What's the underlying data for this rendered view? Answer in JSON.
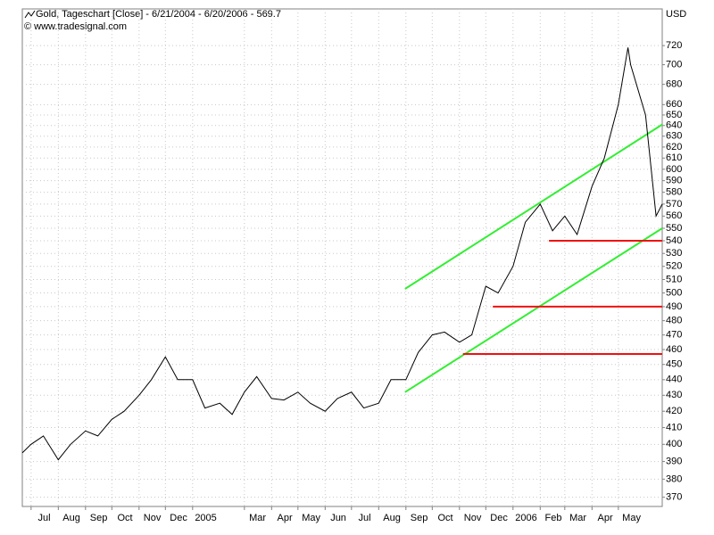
{
  "chart_data": {
    "type": "line",
    "title": "Gold, Tageschart [Close] - 6/21/2004 - 6/20/2006 - 569.7",
    "subtitle": "© www.tradesignal.com",
    "y_axis_label": "USD",
    "log_scale": true,
    "grid": true,
    "xlim": [
      "2004-06-21",
      "2006-06-20"
    ],
    "xticks": [
      {
        "value": "2004-07",
        "label": "Jul"
      },
      {
        "value": "2004-08",
        "label": "Aug"
      },
      {
        "value": "2004-09",
        "label": "Sep"
      },
      {
        "value": "2004-10",
        "label": "Oct"
      },
      {
        "value": "2004-11",
        "label": "Nov"
      },
      {
        "value": "2004-12",
        "label": "Dec"
      },
      {
        "value": "2005-01",
        "label": "2005"
      },
      {
        "value": "2005-03",
        "label": "Mar"
      },
      {
        "value": "2005-04",
        "label": "Apr"
      },
      {
        "value": "2005-05",
        "label": "May"
      },
      {
        "value": "2005-06",
        "label": "Jun"
      },
      {
        "value": "2005-07",
        "label": "Jul"
      },
      {
        "value": "2005-08",
        "label": "Aug"
      },
      {
        "value": "2005-09",
        "label": "Sep"
      },
      {
        "value": "2005-10",
        "label": "Oct"
      },
      {
        "value": "2005-11",
        "label": "Nov"
      },
      {
        "value": "2005-12",
        "label": "Dec"
      },
      {
        "value": "2006-01",
        "label": "2006"
      },
      {
        "value": "2006-02",
        "label": "Feb"
      },
      {
        "value": "2006-03",
        "label": "Mar"
      },
      {
        "value": "2006-04",
        "label": "Apr"
      },
      {
        "value": "2006-05",
        "label": "May"
      }
    ],
    "ylim": [
      365,
      760
    ],
    "yticks": [
      370,
      380,
      390,
      400,
      410,
      420,
      430,
      440,
      450,
      460,
      470,
      480,
      490,
      500,
      510,
      520,
      530,
      540,
      550,
      560,
      570,
      580,
      590,
      600,
      610,
      620,
      630,
      640,
      650,
      660,
      680,
      700,
      720
    ],
    "series": [
      {
        "name": "Gold",
        "color": "#000000",
        "x": [
          "2004-06-21",
          "2004-07-01",
          "2004-07-15",
          "2004-08-01",
          "2004-08-15",
          "2004-09-01",
          "2004-09-15",
          "2004-10-01",
          "2004-10-15",
          "2004-11-01",
          "2004-11-15",
          "2004-12-01",
          "2004-12-15",
          "2005-01-01",
          "2005-01-15",
          "2005-02-01",
          "2005-02-15",
          "2005-03-01",
          "2005-03-15",
          "2005-04-01",
          "2005-04-15",
          "2005-05-01",
          "2005-05-15",
          "2005-06-01",
          "2005-06-15",
          "2005-07-01",
          "2005-07-15",
          "2005-08-01",
          "2005-08-15",
          "2005-09-01",
          "2005-09-15",
          "2005-10-01",
          "2005-10-15",
          "2005-11-01",
          "2005-11-15",
          "2005-12-01",
          "2005-12-15",
          "2006-01-01",
          "2006-01-15",
          "2006-02-01",
          "2006-02-15",
          "2006-03-01",
          "2006-03-15",
          "2006-04-01",
          "2006-04-15",
          "2006-05-01",
          "2006-05-12",
          "2006-05-15",
          "2006-06-01",
          "2006-06-13",
          "2006-06-20"
        ],
        "values": [
          395,
          400,
          405,
          391,
          400,
          408,
          405,
          415,
          420,
          430,
          440,
          455,
          440,
          440,
          422,
          425,
          418,
          432,
          442,
          428,
          427,
          432,
          425,
          420,
          428,
          432,
          422,
          425,
          440,
          440,
          458,
          470,
          472,
          465,
          470,
          505,
          500,
          520,
          555,
          570,
          548,
          560,
          545,
          585,
          610,
          660,
          718,
          700,
          650,
          560,
          570
        ]
      }
    ],
    "trend_lines": [
      {
        "color": "#33ee33",
        "x": [
          "2005-08-31",
          "2006-06-20"
        ],
        "values": [
          503,
          641
        ]
      },
      {
        "color": "#33ee33",
        "x": [
          "2005-08-31",
          "2006-06-20"
        ],
        "values": [
          432,
          550
        ]
      },
      {
        "color": "#ee1111",
        "x": [
          "2006-02-11",
          "2006-06-20"
        ],
        "values": [
          540,
          540
        ]
      },
      {
        "color": "#ee1111",
        "x": [
          "2005-12-09",
          "2006-06-20"
        ],
        "values": [
          490,
          490
        ]
      },
      {
        "color": "#ee1111",
        "x": [
          "2005-11-05",
          "2006-06-20"
        ],
        "values": [
          457,
          457
        ]
      }
    ]
  }
}
